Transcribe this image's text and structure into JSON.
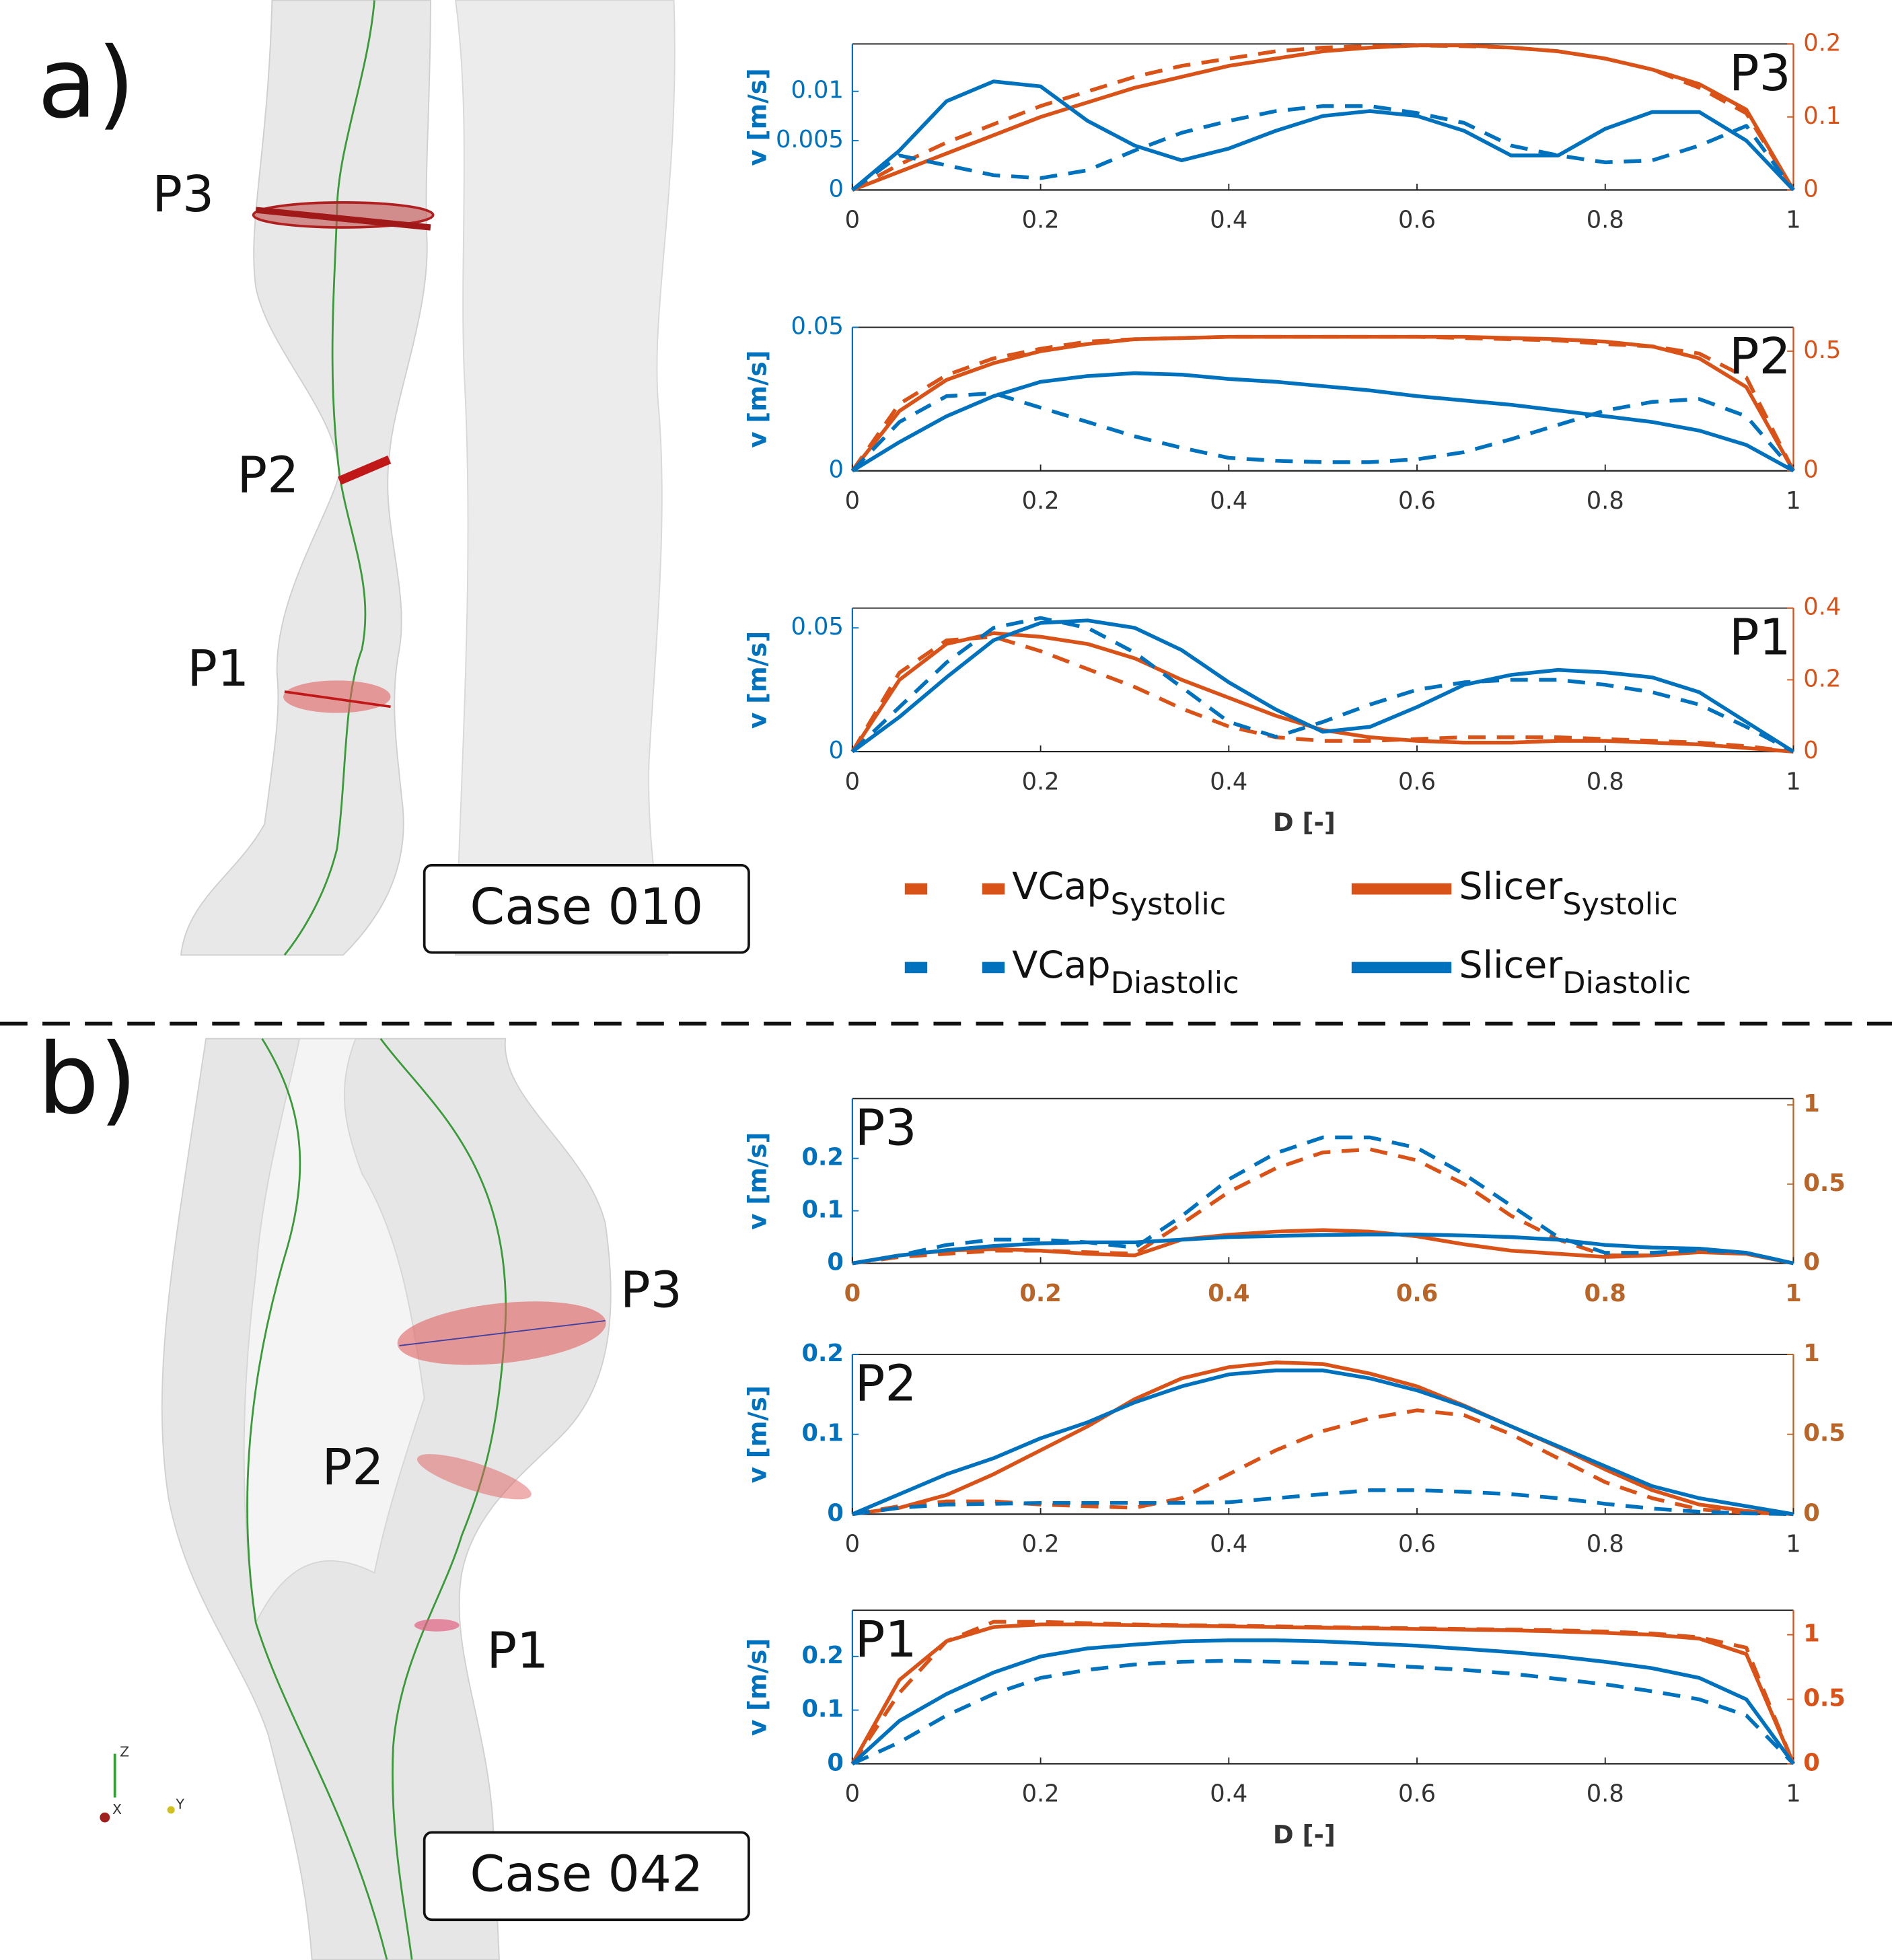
{
  "figure": {
    "panels": [
      {
        "label": "a)",
        "case": "Case 010",
        "markers": [
          "P3",
          "P2",
          "P1"
        ]
      },
      {
        "label": "b)",
        "case": "Case 042",
        "markers": [
          "P3",
          "P2",
          "P1"
        ]
      }
    ],
    "axes_glyph": [
      "Z",
      "X",
      "Y"
    ]
  },
  "chart_data": [
    {
      "type": "line",
      "title": "P3",
      "title_position": "top-right",
      "y_label": "v [m/s]",
      "x": [
        0,
        0.05,
        0.1,
        0.15,
        0.2,
        0.25,
        0.3,
        0.35,
        0.4,
        0.45,
        0.5,
        0.55,
        0.6,
        0.65,
        0.7,
        0.75,
        0.8,
        0.85,
        0.9,
        0.95,
        1
      ],
      "xlim": [
        0,
        1
      ],
      "xticks": [
        0,
        0.2,
        0.4,
        0.6,
        0.8,
        1
      ],
      "xtick_color": "#333333",
      "ylim": [
        0,
        0.0148
      ],
      "yticks": [
        0,
        0.005,
        0.01
      ],
      "ytick_color": "#0072BD",
      "y2lim": [
        0,
        0.2
      ],
      "y2ticks": [
        0,
        0.1,
        0.2
      ],
      "y2tick_color": "#D95319",
      "series": [
        {
          "name": "VCap",
          "subscript": "Systolic",
          "color": "#D95319",
          "dashed": true,
          "axis": "y2",
          "values": [
            0,
            0.035,
            0.065,
            0.09,
            0.115,
            0.135,
            0.155,
            0.17,
            0.18,
            0.19,
            0.195,
            0.197,
            0.198,
            0.197,
            0.195,
            0.19,
            0.18,
            0.165,
            0.14,
            0.105,
            0
          ]
        },
        {
          "name": "Slicer",
          "subscript": "Systolic",
          "color": "#D95319",
          "dashed": false,
          "axis": "y2",
          "values": [
            0,
            0.025,
            0.05,
            0.075,
            0.1,
            0.12,
            0.14,
            0.155,
            0.17,
            0.18,
            0.19,
            0.195,
            0.198,
            0.198,
            0.195,
            0.19,
            0.18,
            0.165,
            0.145,
            0.11,
            0
          ]
        },
        {
          "name": "VCap",
          "subscript": "Diastolic",
          "color": "#0072BD",
          "dashed": true,
          "axis": "y",
          "values": [
            0,
            0.0035,
            0.0025,
            0.0015,
            0.0012,
            0.002,
            0.004,
            0.0058,
            0.007,
            0.008,
            0.0085,
            0.0085,
            0.0078,
            0.0068,
            0.0045,
            0.0035,
            0.0028,
            0.003,
            0.0045,
            0.0065,
            0
          ]
        },
        {
          "name": "Slicer",
          "subscript": "Diastolic",
          "color": "#0072BD",
          "dashed": false,
          "axis": "y",
          "values": [
            0,
            0.004,
            0.009,
            0.011,
            0.0105,
            0.007,
            0.0045,
            0.003,
            0.0042,
            0.006,
            0.0075,
            0.008,
            0.0075,
            0.006,
            0.0035,
            0.0035,
            0.0062,
            0.0079,
            0.0079,
            0.005,
            0
          ]
        }
      ]
    },
    {
      "type": "line",
      "title": "P2",
      "title_position": "top-right",
      "y_label": "v [m/s]",
      "x": [
        0,
        0.05,
        0.1,
        0.15,
        0.2,
        0.25,
        0.3,
        0.35,
        0.4,
        0.45,
        0.5,
        0.55,
        0.6,
        0.65,
        0.7,
        0.75,
        0.8,
        0.85,
        0.9,
        0.95,
        1
      ],
      "xlim": [
        0,
        1
      ],
      "xticks": [
        0,
        0.2,
        0.4,
        0.6,
        0.8,
        1
      ],
      "xtick_color": "#333333",
      "ylim": [
        0,
        0.05
      ],
      "yticks": [
        0,
        0.05
      ],
      "ytick_color": "#0072BD",
      "y2lim": [
        0,
        0.6
      ],
      "y2ticks": [
        0,
        0.5
      ],
      "y2tick_color": "#D95319",
      "series": [
        {
          "name": "VCap",
          "subscript": "Systolic",
          "color": "#D95319",
          "dashed": true,
          "axis": "y2",
          "values": [
            0,
            0.28,
            0.4,
            0.47,
            0.51,
            0.54,
            0.55,
            0.555,
            0.56,
            0.56,
            0.56,
            0.56,
            0.56,
            0.555,
            0.55,
            0.545,
            0.53,
            0.52,
            0.49,
            0.39,
            0
          ]
        },
        {
          "name": "Slicer",
          "subscript": "Systolic",
          "color": "#D95319",
          "dashed": false,
          "axis": "y2",
          "values": [
            0,
            0.25,
            0.38,
            0.45,
            0.5,
            0.53,
            0.55,
            0.555,
            0.56,
            0.56,
            0.56,
            0.56,
            0.56,
            0.56,
            0.555,
            0.55,
            0.54,
            0.52,
            0.47,
            0.35,
            0
          ]
        },
        {
          "name": "VCap",
          "subscript": "Diastolic",
          "color": "#0072BD",
          "dashed": true,
          "axis": "y",
          "values": [
            0,
            0.017,
            0.026,
            0.027,
            0.022,
            0.017,
            0.012,
            0.008,
            0.0045,
            0.0035,
            0.003,
            0.003,
            0.004,
            0.0065,
            0.011,
            0.016,
            0.021,
            0.024,
            0.025,
            0.019,
            0
          ]
        },
        {
          "name": "Slicer",
          "subscript": "Diastolic",
          "color": "#0072BD",
          "dashed": false,
          "axis": "y",
          "values": [
            0,
            0.01,
            0.019,
            0.026,
            0.031,
            0.033,
            0.034,
            0.0335,
            0.032,
            0.031,
            0.0295,
            0.028,
            0.026,
            0.0245,
            0.023,
            0.021,
            0.019,
            0.017,
            0.014,
            0.009,
            0
          ]
        }
      ]
    },
    {
      "type": "line",
      "title": "P1",
      "title_position": "top-right",
      "y_label": "v [m/s]",
      "x_label": "D [-]",
      "x": [
        0,
        0.05,
        0.1,
        0.15,
        0.2,
        0.25,
        0.3,
        0.35,
        0.4,
        0.45,
        0.5,
        0.55,
        0.6,
        0.65,
        0.7,
        0.75,
        0.8,
        0.85,
        0.9,
        0.95,
        1
      ],
      "xlim": [
        0,
        1
      ],
      "xticks": [
        0,
        0.2,
        0.4,
        0.6,
        0.8,
        1
      ],
      "xtick_color": "#333333",
      "ylim": [
        0,
        0.058
      ],
      "yticks": [
        0,
        0.05
      ],
      "ytick_color": "#0072BD",
      "y2lim": [
        0,
        0.4
      ],
      "y2ticks": [
        0,
        0.2,
        0.4
      ],
      "y2tick_color": "#D95319",
      "series": [
        {
          "name": "VCap",
          "subscript": "Systolic",
          "color": "#D95319",
          "dashed": true,
          "axis": "y2",
          "values": [
            0,
            0.22,
            0.31,
            0.32,
            0.28,
            0.23,
            0.18,
            0.12,
            0.07,
            0.04,
            0.03,
            0.03,
            0.035,
            0.04,
            0.04,
            0.04,
            0.035,
            0.03,
            0.025,
            0.015,
            0
          ]
        },
        {
          "name": "Slicer",
          "subscript": "Systolic",
          "color": "#D95319",
          "dashed": false,
          "axis": "y2",
          "values": [
            0,
            0.2,
            0.3,
            0.33,
            0.32,
            0.3,
            0.26,
            0.2,
            0.15,
            0.1,
            0.06,
            0.04,
            0.03,
            0.025,
            0.025,
            0.03,
            0.03,
            0.025,
            0.02,
            0.01,
            0
          ]
        },
        {
          "name": "VCap",
          "subscript": "Diastolic",
          "color": "#0072BD",
          "dashed": true,
          "axis": "y",
          "values": [
            0,
            0.018,
            0.036,
            0.05,
            0.054,
            0.05,
            0.04,
            0.026,
            0.012,
            0.006,
            0.012,
            0.019,
            0.025,
            0.028,
            0.029,
            0.029,
            0.027,
            0.024,
            0.019,
            0.01,
            0
          ]
        },
        {
          "name": "Slicer",
          "subscript": "Diastolic",
          "color": "#0072BD",
          "dashed": false,
          "axis": "y",
          "values": [
            0,
            0.014,
            0.03,
            0.045,
            0.052,
            0.053,
            0.05,
            0.041,
            0.028,
            0.017,
            0.008,
            0.01,
            0.018,
            0.027,
            0.031,
            0.033,
            0.032,
            0.03,
            0.024,
            0.012,
            0
          ]
        }
      ]
    },
    {
      "type": "line",
      "title": "P3",
      "title_position": "top-left",
      "y_label": "v [m/s]",
      "x": [
        0,
        0.05,
        0.1,
        0.15,
        0.2,
        0.25,
        0.3,
        0.35,
        0.4,
        0.45,
        0.5,
        0.55,
        0.6,
        0.65,
        0.7,
        0.75,
        0.8,
        0.85,
        0.9,
        0.95,
        1
      ],
      "xlim": [
        0,
        1
      ],
      "xticks": [
        0,
        0.2,
        0.4,
        0.6,
        0.8,
        1
      ],
      "xtick_color": "#B8652A",
      "ylim": [
        0,
        0.314
      ],
      "yticks": [
        0,
        0.1,
        0.2
      ],
      "ytick_color": "#0072BD",
      "y2lim": [
        0,
        1.04
      ],
      "y2ticks": [
        0,
        0.5,
        1
      ],
      "y2tick_color": "#B8652A",
      "series": [
        {
          "name": "VCap",
          "subscript": "Systolic",
          "color": "#D95319",
          "dashed": true,
          "axis": "y2",
          "values": [
            0,
            0.04,
            0.06,
            0.08,
            0.08,
            0.07,
            0.06,
            0.25,
            0.45,
            0.6,
            0.7,
            0.72,
            0.65,
            0.5,
            0.3,
            0.15,
            0.05,
            0.05,
            0.08,
            0.06,
            0
          ]
        },
        {
          "name": "Slicer",
          "subscript": "Systolic",
          "color": "#D95319",
          "dashed": false,
          "axis": "y2",
          "values": [
            0,
            0.05,
            0.08,
            0.09,
            0.08,
            0.06,
            0.05,
            0.15,
            0.18,
            0.2,
            0.21,
            0.2,
            0.17,
            0.12,
            0.08,
            0.06,
            0.04,
            0.05,
            0.07,
            0.06,
            0
          ]
        },
        {
          "name": "VCap",
          "subscript": "Diastolic",
          "color": "#0072BD",
          "dashed": true,
          "axis": "y",
          "values": [
            0,
            0.015,
            0.035,
            0.045,
            0.045,
            0.04,
            0.03,
            0.09,
            0.16,
            0.21,
            0.24,
            0.24,
            0.22,
            0.17,
            0.11,
            0.05,
            0.02,
            0.02,
            0.025,
            0.02,
            0
          ]
        },
        {
          "name": "Slicer",
          "subscript": "Diastolic",
          "color": "#0072BD",
          "dashed": false,
          "axis": "y",
          "values": [
            0,
            0.015,
            0.025,
            0.033,
            0.038,
            0.04,
            0.04,
            0.045,
            0.05,
            0.052,
            0.054,
            0.055,
            0.055,
            0.053,
            0.05,
            0.045,
            0.035,
            0.03,
            0.028,
            0.02,
            0
          ]
        }
      ]
    },
    {
      "type": "line",
      "title": "P2",
      "title_position": "top-left",
      "y_label": "v [m/s]",
      "x": [
        0,
        0.05,
        0.1,
        0.15,
        0.2,
        0.25,
        0.3,
        0.35,
        0.4,
        0.45,
        0.5,
        0.55,
        0.6,
        0.65,
        0.7,
        0.75,
        0.8,
        0.85,
        0.9,
        0.95,
        1
      ],
      "xlim": [
        0,
        1
      ],
      "xticks": [
        0,
        0.2,
        0.4,
        0.6,
        0.8,
        1
      ],
      "xtick_color": "#333333",
      "ylim": [
        0,
        0.2
      ],
      "yticks": [
        0,
        0.1,
        0.2
      ],
      "ytick_color": "#0072BD",
      "y2lim": [
        0,
        1
      ],
      "y2ticks": [
        0,
        0.5,
        1
      ],
      "y2tick_color": "#B8652A",
      "series": [
        {
          "name": "VCap",
          "subscript": "Systolic",
          "color": "#D95319",
          "dashed": true,
          "axis": "y2",
          "values": [
            0,
            0.05,
            0.08,
            0.08,
            0.06,
            0.05,
            0.04,
            0.1,
            0.25,
            0.4,
            0.52,
            0.6,
            0.65,
            0.62,
            0.5,
            0.35,
            0.2,
            0.1,
            0.03,
            0.01,
            0
          ]
        },
        {
          "name": "Slicer",
          "subscript": "Systolic",
          "color": "#D95319",
          "dashed": false,
          "axis": "y2",
          "values": [
            0,
            0.04,
            0.12,
            0.25,
            0.4,
            0.55,
            0.72,
            0.85,
            0.92,
            0.95,
            0.94,
            0.88,
            0.8,
            0.68,
            0.55,
            0.42,
            0.28,
            0.15,
            0.06,
            0.02,
            0
          ]
        },
        {
          "name": "VCap",
          "subscript": "Diastolic",
          "color": "#0072BD",
          "dashed": true,
          "axis": "y",
          "values": [
            0,
            0.008,
            0.012,
            0.013,
            0.014,
            0.014,
            0.014,
            0.014,
            0.015,
            0.02,
            0.025,
            0.03,
            0.03,
            0.028,
            0.025,
            0.02,
            0.013,
            0.007,
            0.003,
            0.001,
            0
          ]
        },
        {
          "name": "Slicer",
          "subscript": "Diastolic",
          "color": "#0072BD",
          "dashed": false,
          "axis": "y",
          "values": [
            0,
            0.025,
            0.05,
            0.07,
            0.095,
            0.115,
            0.14,
            0.16,
            0.175,
            0.18,
            0.18,
            0.17,
            0.155,
            0.135,
            0.11,
            0.085,
            0.06,
            0.035,
            0.02,
            0.01,
            0
          ]
        }
      ]
    },
    {
      "type": "line",
      "title": "P1",
      "title_position": "top-left",
      "y_label": "v [m/s]",
      "x_label": "D [-]",
      "x": [
        0,
        0.05,
        0.1,
        0.15,
        0.2,
        0.25,
        0.3,
        0.35,
        0.4,
        0.45,
        0.5,
        0.55,
        0.6,
        0.65,
        0.7,
        0.75,
        0.8,
        0.85,
        0.9,
        0.95,
        1
      ],
      "xlim": [
        0,
        1
      ],
      "xticks": [
        0,
        0.2,
        0.4,
        0.6,
        0.8,
        1
      ],
      "xtick_color": "#333333",
      "ylim": [
        0,
        0.286
      ],
      "yticks": [
        0,
        0.1,
        0.2
      ],
      "ytick_color": "#0072BD",
      "y2lim": [
        0,
        1.19
      ],
      "y2ticks": [
        0,
        0.5,
        1
      ],
      "y2tick_color": "#D95319",
      "series": [
        {
          "name": "VCap",
          "subscript": "Systolic",
          "color": "#D95319",
          "dashed": true,
          "axis": "y2",
          "values": [
            0,
            0.55,
            0.95,
            1.1,
            1.1,
            1.09,
            1.08,
            1.075,
            1.07,
            1.065,
            1.06,
            1.055,
            1.05,
            1.045,
            1.04,
            1.035,
            1.025,
            1.01,
            0.98,
            0.9,
            0
          ]
        },
        {
          "name": "Slicer",
          "subscript": "Systolic",
          "color": "#D95319",
          "dashed": false,
          "axis": "y2",
          "values": [
            0,
            0.65,
            0.95,
            1.06,
            1.08,
            1.08,
            1.075,
            1.07,
            1.065,
            1.06,
            1.055,
            1.05,
            1.045,
            1.04,
            1.035,
            1.025,
            1.015,
            1.0,
            0.97,
            0.85,
            0
          ]
        },
        {
          "name": "VCap",
          "subscript": "Diastolic",
          "color": "#0072BD",
          "dashed": true,
          "axis": "y",
          "values": [
            0,
            0.04,
            0.09,
            0.13,
            0.16,
            0.175,
            0.185,
            0.19,
            0.192,
            0.19,
            0.188,
            0.185,
            0.18,
            0.175,
            0.168,
            0.158,
            0.148,
            0.135,
            0.12,
            0.09,
            0
          ]
        },
        {
          "name": "Slicer",
          "subscript": "Diastolic",
          "color": "#0072BD",
          "dashed": false,
          "axis": "y",
          "values": [
            0,
            0.08,
            0.13,
            0.17,
            0.2,
            0.215,
            0.222,
            0.228,
            0.23,
            0.23,
            0.228,
            0.224,
            0.22,
            0.214,
            0.208,
            0.2,
            0.19,
            0.178,
            0.16,
            0.12,
            0
          ]
        }
      ]
    }
  ]
}
